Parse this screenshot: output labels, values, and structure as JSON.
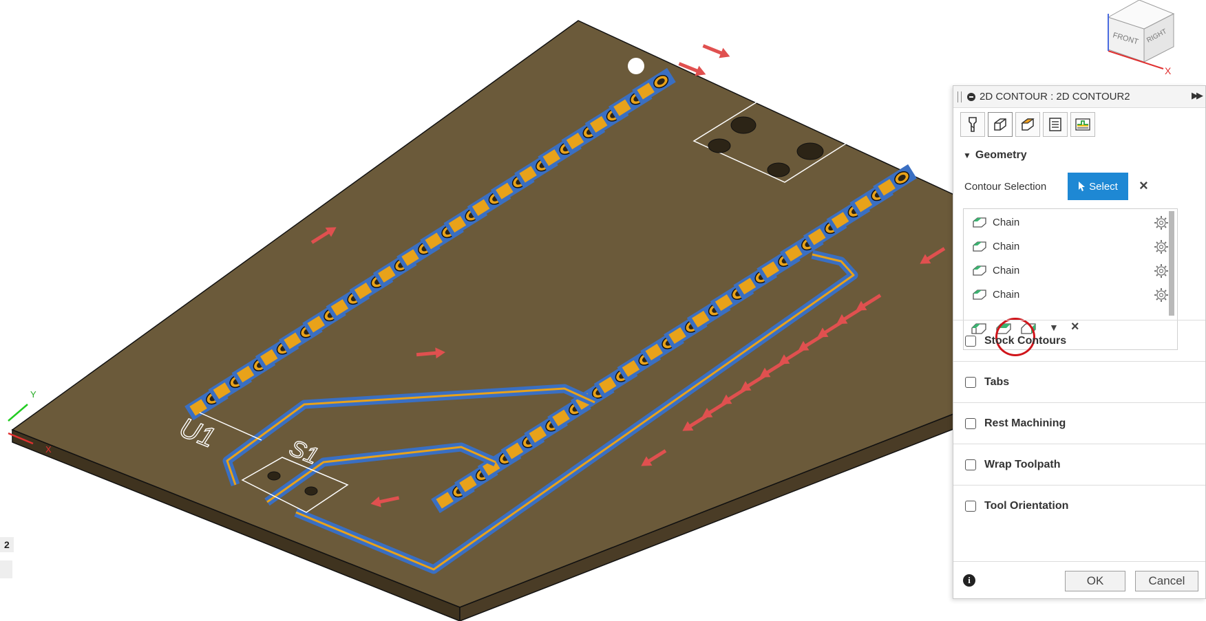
{
  "viewcube": {
    "faces": [
      "FRONT",
      "RIGHT"
    ],
    "axis_label": "X"
  },
  "axes_triad": {
    "y_label": "Y",
    "x_label": "X"
  },
  "board": {
    "silkscreen": [
      "U1",
      "S1"
    ]
  },
  "left_labels": [
    "2",
    ""
  ],
  "panel": {
    "title": "2D CONTOUR : 2D CONTOUR2",
    "tabs": [
      "tool-icon",
      "geometry-icon",
      "heights-icon",
      "passes-icon",
      "linking-icon"
    ],
    "geometry_section": "Geometry",
    "contour_selection_label": "Contour Selection",
    "select_button": "Select",
    "chains": [
      {
        "label": "Chain"
      },
      {
        "label": "Chain"
      },
      {
        "label": "Chain"
      },
      {
        "label": "Chain"
      }
    ],
    "options": [
      {
        "label": "Stock Contours"
      },
      {
        "label": "Tabs"
      },
      {
        "label": "Rest Machining"
      },
      {
        "label": "Wrap Toolpath"
      },
      {
        "label": "Tool Orientation"
      }
    ],
    "ok_button": "OK",
    "cancel_button": "Cancel"
  },
  "colors": {
    "board_top": "#6b5a3a",
    "board_side": "#4a3c26",
    "pad_gold": "#e8a21a",
    "trace_blue": "#3a6fc2",
    "arrow_red": "#e0504f",
    "select_blue": "#1e88d4"
  }
}
